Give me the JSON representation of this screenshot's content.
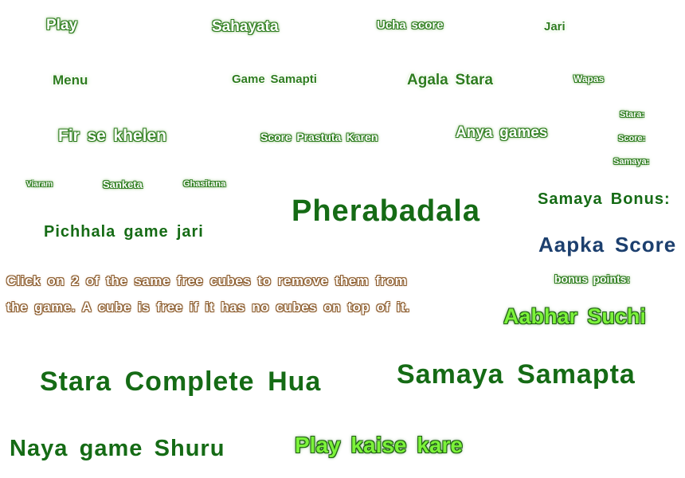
{
  "labels": {
    "play": "Play",
    "sahayata": "Sahayata",
    "ucha_score": "Ucha score",
    "jari": "Jari",
    "menu": "Menu",
    "game_samapti": "Game Samapti",
    "agala_stara": "Agala Stara",
    "wapas": "Wapas",
    "fir_se_khelen": "Fir se khelen",
    "score_prastuta": "Score Prastuta Karen",
    "anya_games": "Anya games",
    "stara": "Stara:",
    "score": "Score:",
    "samaya": "Samaya:",
    "viaram": "Viaram",
    "sanketa": "Sanketa",
    "ghasitana": "Ghasitana",
    "pherabadala": "Pherabadala",
    "samaya_bonus": "Samaya Bonus:",
    "pichhala_game_jari": "Pichhala game jari",
    "aapka_score": "Aapka Score",
    "bonus_points": "bonus points:",
    "aabhar_suchi": "Aabhar Suchi",
    "stara_complete": "Stara Complete Hua",
    "samaya_samapta": "Samaya Samapta",
    "naya_game": "Naya game Shuru",
    "play_kaise": "Play kaise kare"
  },
  "instructions": {
    "line1": "Click on 2 of the same free cubes to remove them from",
    "line2": "the game. A cube is free if it has no cubes on top of it."
  }
}
